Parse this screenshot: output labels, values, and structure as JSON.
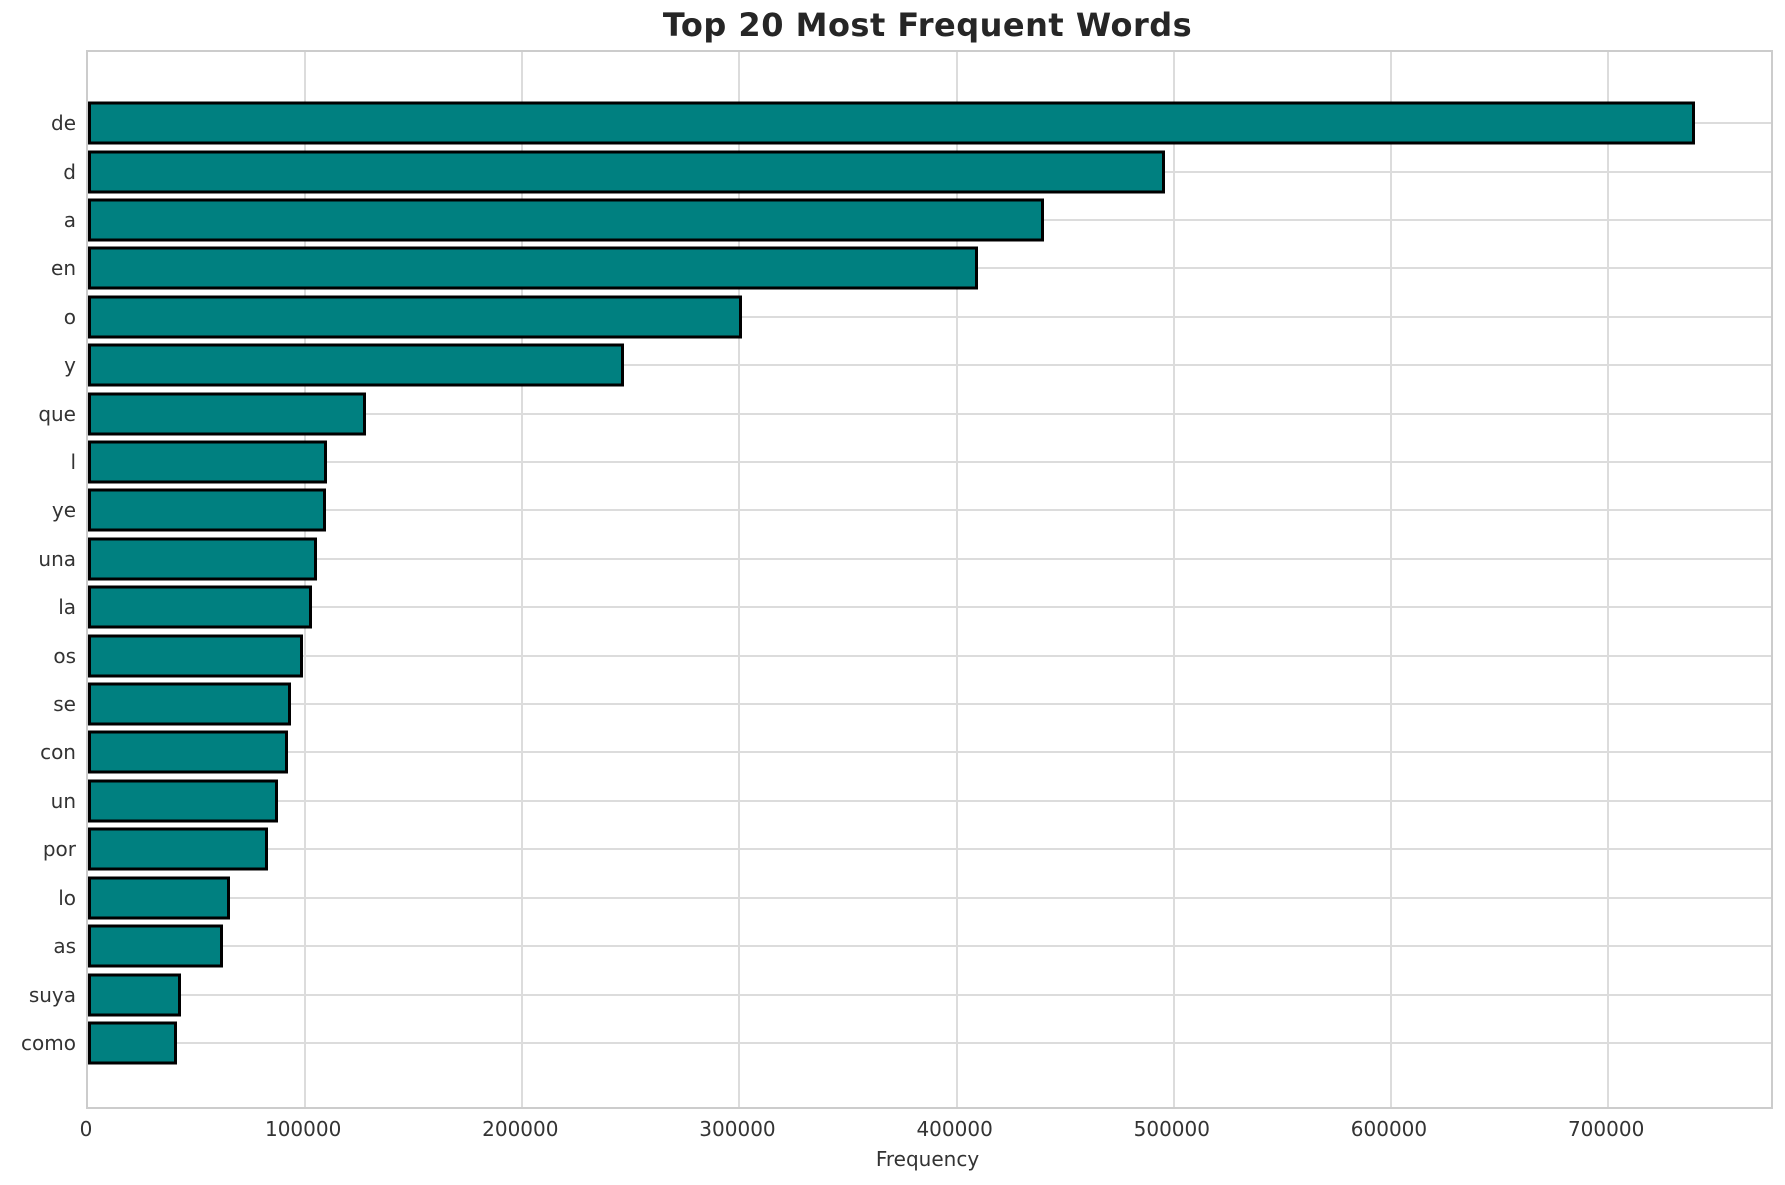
{
  "title": "Top 20 Most Frequent Words",
  "chart_data": {
    "type": "bar",
    "orientation": "horizontal",
    "title": "Top 20 Most Frequent Words",
    "xlabel": "Frequency",
    "ylabel": "",
    "categories": [
      "de",
      "d",
      "a",
      "en",
      "o",
      "y",
      "que",
      "l",
      "ye",
      "una",
      "la",
      "os",
      "se",
      "con",
      "un",
      "por",
      "lo",
      "as",
      "suya",
      "como"
    ],
    "values": [
      740000,
      496000,
      440000,
      410000,
      301000,
      247000,
      128000,
      110000,
      109500,
      105500,
      103000,
      99000,
      93500,
      92000,
      87500,
      83000,
      65500,
      62000,
      43000,
      41000
    ],
    "xlim": [
      0,
      775000
    ],
    "xticks": [
      0,
      100000,
      200000,
      300000,
      400000,
      500000,
      600000,
      700000
    ],
    "grid": true,
    "legend": false,
    "bar_color": "#008080",
    "bar_edge_color": "#000000",
    "grid_color": "#dcdcdc",
    "spine_color": "#cccccc",
    "text_color": "#333333",
    "title_color": "#262626",
    "background": "#ffffff"
  }
}
